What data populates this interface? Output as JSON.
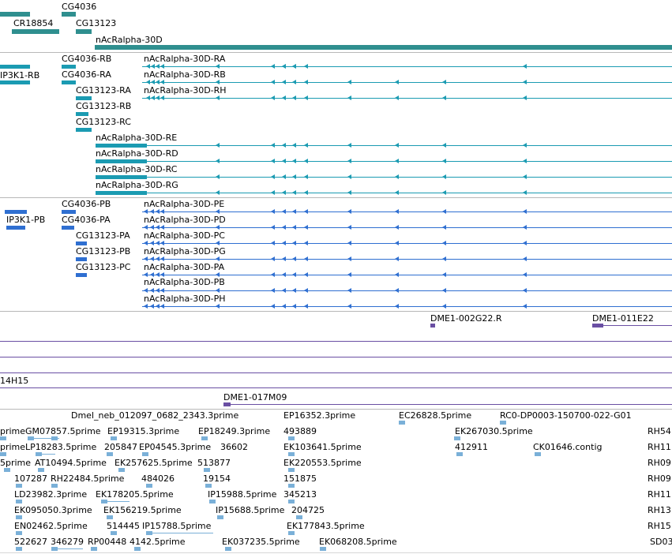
{
  "colors": {
    "gene": "#2f8f8f",
    "transcript": "#1b9bb2",
    "protein": "#2f6fd1",
    "clone": "#6a4fa3",
    "est": "#7ab0d8",
    "separator": "#b8b8b8"
  },
  "icons": {
    "minus_strand_arrow": "left-arrow-icon",
    "plus_strand_arrow": "right-arrow-icon"
  },
  "tracks": {
    "genes": {
      "labels": [
        "CG4036",
        "CR18854",
        "CG13123",
        "nAcRalpha-30D"
      ]
    },
    "transcripts": {
      "labels": [
        "CG4036-RB",
        "IP3K1-RB",
        "CG4036-RA",
        "CG13123-RA",
        "CG13123-RB",
        "CG13123-RC",
        "nAcRalpha-30D-RA",
        "nAcRalpha-30D-RB",
        "nAcRalpha-30D-RH",
        "nAcRalpha-30D-RE",
        "nAcRalpha-30D-RD",
        "nAcRalpha-30D-RC",
        "nAcRalpha-30D-RG"
      ]
    },
    "proteins": {
      "labels": [
        "CG4036-PB",
        "IP3K1-PB",
        "CG4036-PA",
        "CG13123-PA",
        "CG13123-PB",
        "CG13123-PC",
        "nAcRalpha-30D-PE",
        "nAcRalpha-30D-PD",
        "nAcRalpha-30D-PC",
        "nAcRalpha-30D-PG",
        "nAcRalpha-30D-PA",
        "nAcRalpha-30D-PB",
        "nAcRalpha-30D-PH"
      ]
    },
    "clones": {
      "labels": [
        "DME1-002G22.R",
        "DME1-011E22",
        "14H15",
        "DME1-017M09"
      ]
    },
    "ests": {
      "labels": [
        "Dmel_neb_012097_0682_2343.3prime",
        "EP16352.3prime",
        "EC26828.5prime",
        "RC0-DP0003-150700-022-G01",
        "prime",
        "GM07857.5prime",
        "EP19315.3prime",
        "EP18249.3prime",
        "493889",
        "EK267030.5prime",
        "RH54",
        "prime",
        "LP18283.5prime",
        "205847",
        "EP04545.3prime",
        "36602",
        "EK103641.5prime",
        "412911",
        "CK01646.contig",
        "RH11",
        "5prime",
        "AT10494.5prime",
        "EK257625.5prime",
        "513877",
        "EK220553.5prime",
        "RH09",
        "107287",
        "RH22484.5prime",
        "484026",
        "19154",
        "151875",
        "RH09",
        "LD23982.3prime",
        "EK178205.5prime",
        "IP15988.5prime",
        "345213",
        "RH11",
        "EK095050.3prime",
        "EK156219.5prime",
        "IP15688.5prime",
        "204725",
        "RH13",
        "EN02462.5prime",
        "514445",
        "IP15788.5prime",
        "EK177843.5prime",
        "RH15",
        "522627",
        "346279",
        "RP00448",
        "4142.5prime",
        "EK037235.5prime",
        "EK068208.5prime",
        "SD03"
      ]
    }
  }
}
